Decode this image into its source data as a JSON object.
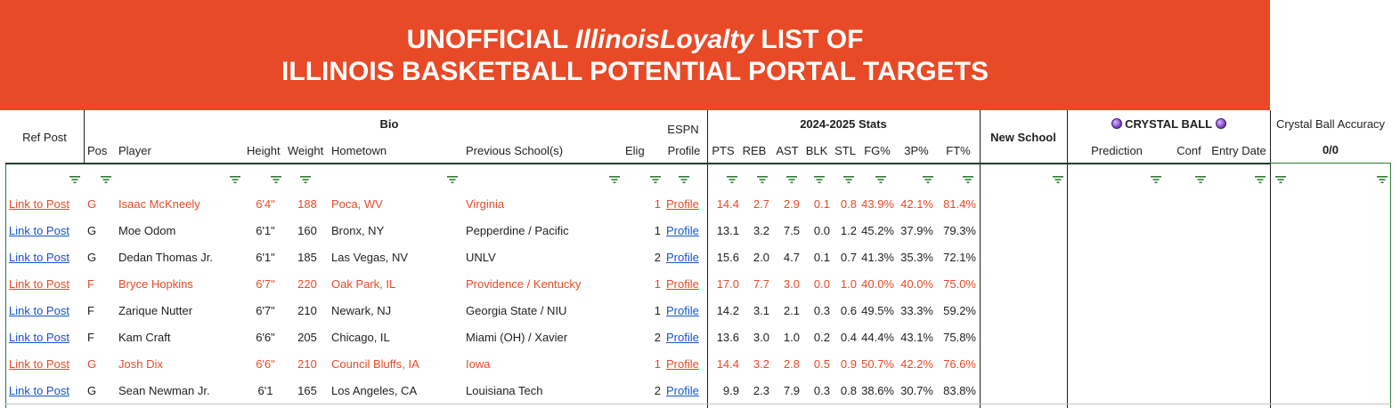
{
  "banner": {
    "line1_pre": "UNOFFICIAL ",
    "line1_em": "IllinoisLoyalty",
    "line1_post": " LIST OF",
    "line2": "ILLINOIS BASKETBALL POTENTIAL PORTAL TARGETS"
  },
  "headers": {
    "ref_post": "Ref Post",
    "bio": "Bio",
    "espn": "ESPN",
    "stats_group": "2024-2025 Stats",
    "new_school": "New School",
    "crystal_ball": "CRYSTAL BALL",
    "accuracy": "Crystal Ball Accuracy",
    "accuracy_value": "0/0",
    "pos": "Pos",
    "player": "Player",
    "height": "Height",
    "weight": "Weight",
    "hometown": "Hometown",
    "previous": "Previous School(s)",
    "elig": "Elig",
    "profile": "Profile",
    "pts": "PTS",
    "reb": "REB",
    "ast": "AST",
    "blk": "BLK",
    "stl": "STL",
    "fg": "FG%",
    "three": "3P%",
    "ft": "FT%",
    "prediction": "Prediction",
    "conf": "Conf",
    "entry_date": "Entry Date"
  },
  "colors": {
    "accent": "#e84a27",
    "link": "#1155cc",
    "filter": "#2e7d32"
  },
  "rows": [
    {
      "link": "Link to Post",
      "pos": "G",
      "player": "Isaac McKneely",
      "height": "6'4\"",
      "weight": "188",
      "hometown": "Poca, WV",
      "previous": "Virginia",
      "elig": "1",
      "profile": "Profile",
      "pts": "14.4",
      "reb": "2.7",
      "ast": "2.9",
      "blk": "0.1",
      "stl": "0.8",
      "fg": "43.9%",
      "three": "42.1%",
      "ft": "81.4%",
      "highlight": true
    },
    {
      "link": "Link to Post",
      "pos": "G",
      "player": "Moe Odom",
      "height": "6'1\"",
      "weight": "160",
      "hometown": "Bronx, NY",
      "previous": "Pepperdine / Pacific",
      "elig": "1",
      "profile": "Profile",
      "pts": "13.1",
      "reb": "3.2",
      "ast": "7.5",
      "blk": "0.0",
      "stl": "1.2",
      "fg": "45.2%",
      "three": "37.9%",
      "ft": "79.3%",
      "highlight": false
    },
    {
      "link": "Link to Post",
      "pos": "G",
      "player": "Dedan Thomas Jr.",
      "height": "6'1\"",
      "weight": "185",
      "hometown": "Las Vegas, NV",
      "previous": "UNLV",
      "elig": "2",
      "profile": "Profile",
      "pts": "15.6",
      "reb": "2.0",
      "ast": "4.7",
      "blk": "0.1",
      "stl": "0.7",
      "fg": "41.3%",
      "three": "35.3%",
      "ft": "72.1%",
      "highlight": false
    },
    {
      "link": "Link to Post",
      "pos": "F",
      "player": "Bryce Hopkins",
      "height": "6'7\"",
      "weight": "220",
      "hometown": "Oak Park, IL",
      "previous": "Providence / Kentucky",
      "elig": "1",
      "profile": "Profile",
      "pts": "17.0",
      "reb": "7.7",
      "ast": "3.0",
      "blk": "0.0",
      "stl": "1.0",
      "fg": "40.0%",
      "three": "40.0%",
      "ft": "75.0%",
      "highlight": true
    },
    {
      "link": "Link to Post",
      "pos": "F",
      "player": "Zarique Nutter",
      "height": "6'7\"",
      "weight": "210",
      "hometown": "Newark, NJ",
      "previous": "Georgia State / NIU",
      "elig": "1",
      "profile": "Profile",
      "pts": "14.2",
      "reb": "3.1",
      "ast": "2.1",
      "blk": "0.3",
      "stl": "0.6",
      "fg": "49.5%",
      "three": "33.3%",
      "ft": "59.2%",
      "highlight": false
    },
    {
      "link": "Link to Post",
      "pos": "F",
      "player": "Kam Craft",
      "height": "6'6\"",
      "weight": "205",
      "hometown": "Chicago, IL",
      "previous": "Miami (OH) / Xavier",
      "elig": "2",
      "profile": "Profile",
      "pts": "13.6",
      "reb": "3.0",
      "ast": "1.0",
      "blk": "0.2",
      "stl": "0.4",
      "fg": "44.4%",
      "three": "43.1%",
      "ft": "75.8%",
      "highlight": false
    },
    {
      "link": "Link to Post",
      "pos": "G",
      "player": "Josh Dix",
      "height": "6'6\"",
      "weight": "210",
      "hometown": "Council Bluffs, IA",
      "previous": "Iowa",
      "elig": "1",
      "profile": "Profile",
      "pts": "14.4",
      "reb": "3.2",
      "ast": "2.8",
      "blk": "0.5",
      "stl": "0.9",
      "fg": "50.7%",
      "three": "42.2%",
      "ft": "76.6%",
      "highlight": true
    },
    {
      "link": "Link to Post",
      "pos": "G",
      "player": "Sean Newman Jr.",
      "height": "6'1",
      "weight": "165",
      "hometown": "Los Angeles, CA",
      "previous": "Louisiana Tech",
      "elig": "2",
      "profile": "Profile",
      "pts": "9.9",
      "reb": "2.3",
      "ast": "7.9",
      "blk": "0.3",
      "stl": "0.8",
      "fg": "38.6%",
      "three": "30.7%",
      "ft": "83.8%",
      "highlight": false
    }
  ]
}
